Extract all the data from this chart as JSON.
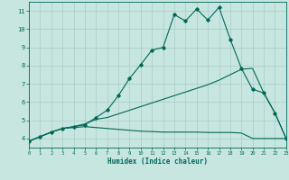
{
  "xlabel": "Humidex (Indice chaleur)",
  "background_color": "#c8e6e0",
  "grid_color": "#a8ccc8",
  "line_color": "#006858",
  "xlim": [
    0,
    23
  ],
  "ylim": [
    3.5,
    11.5
  ],
  "xticks": [
    0,
    1,
    2,
    3,
    4,
    5,
    6,
    7,
    8,
    9,
    10,
    11,
    12,
    13,
    14,
    15,
    16,
    17,
    18,
    19,
    20,
    21,
    22,
    23
  ],
  "yticks": [
    4,
    5,
    6,
    7,
    8,
    9,
    10,
    11
  ],
  "curve1_x": [
    0,
    1,
    2,
    3,
    4,
    5,
    6,
    7,
    8,
    9,
    10,
    11,
    12,
    13,
    14,
    15,
    16,
    17,
    18,
    19,
    20,
    21,
    22,
    23
  ],
  "curve1_y": [
    3.85,
    4.1,
    4.35,
    4.55,
    4.65,
    4.75,
    5.15,
    5.55,
    6.35,
    7.3,
    8.05,
    8.85,
    9.0,
    10.8,
    10.45,
    11.1,
    10.5,
    11.2,
    9.45,
    7.85,
    6.7,
    6.5,
    5.4,
    4.0
  ],
  "curve2_x": [
    0,
    1,
    2,
    3,
    4,
    5,
    6,
    7,
    8,
    9,
    10,
    11,
    12,
    13,
    14,
    15,
    16,
    17,
    18,
    19,
    20,
    21,
    22,
    23
  ],
  "curve2_y": [
    3.85,
    4.1,
    4.35,
    4.55,
    4.65,
    4.8,
    5.05,
    5.15,
    5.35,
    5.55,
    5.75,
    5.95,
    6.15,
    6.35,
    6.55,
    6.75,
    6.95,
    7.2,
    7.5,
    7.8,
    7.85,
    6.5,
    5.4,
    4.0
  ],
  "curve3_x": [
    0,
    1,
    2,
    3,
    4,
    5,
    6,
    7,
    8,
    9,
    10,
    11,
    12,
    13,
    14,
    15,
    16,
    17,
    18,
    19,
    20,
    21,
    22,
    23
  ],
  "curve3_y": [
    3.85,
    4.1,
    4.35,
    4.55,
    4.6,
    4.65,
    4.6,
    4.55,
    4.5,
    4.45,
    4.4,
    4.38,
    4.35,
    4.35,
    4.35,
    4.35,
    4.33,
    4.33,
    4.33,
    4.3,
    4.0,
    4.0,
    4.0,
    4.0
  ]
}
